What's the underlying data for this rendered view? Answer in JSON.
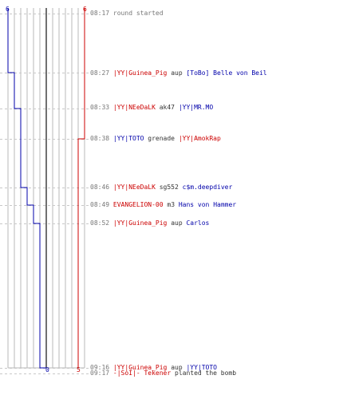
{
  "colors": {
    "team_a": "#0000aa",
    "team_b": "#cc0000",
    "grid": "#b8b8b8",
    "center": "#707070",
    "time": "#777777"
  },
  "scale": {
    "top_left": "6",
    "top_right": "6",
    "bottom_left": "0",
    "bottom_right": "5"
  },
  "events": [
    {
      "time": "08:17",
      "actor": "",
      "actor_team": "",
      "weapon": "round started",
      "target": "",
      "target_team": ""
    },
    {
      "time": "08:27",
      "actor": "|YY|Guinea_Pig",
      "actor_team": "red",
      "weapon": "aup",
      "target": "[ToBo] Belle von Beil",
      "target_team": "blue"
    },
    {
      "time": "08:33",
      "actor": "|YY|NEeDaLK",
      "actor_team": "red",
      "weapon": "ak47",
      "target": "|YY|MR.MO",
      "target_team": "blue"
    },
    {
      "time": "08:38",
      "actor": "|YY|TOTO",
      "actor_team": "blue",
      "weapon": "grenade",
      "target": "|YY|AmokRap",
      "target_team": "red"
    },
    {
      "time": "08:46",
      "actor": "|YY|NEeDaLK",
      "actor_team": "red",
      "weapon": "sg552",
      "target": "c$m.deepdiver",
      "target_team": "blue"
    },
    {
      "time": "08:49",
      "actor": "EVANGELION-00",
      "actor_team": "red",
      "weapon": "m3",
      "target": "Hans von Hammer",
      "target_team": "blue"
    },
    {
      "time": "08:52",
      "actor": "|YY|Guinea_Pig",
      "actor_team": "red",
      "weapon": "aup",
      "target": "Carlos",
      "target_team": "blue"
    },
    {
      "time": "09:16",
      "actor": "|YY|Guinea_Pig",
      "actor_team": "red",
      "weapon": "aup",
      "target": "|YY|TOTO",
      "target_team": "blue"
    },
    {
      "time": "09:17",
      "actor": "-|SoI|- Tekener",
      "actor_team": "red",
      "weapon": "planted the bomb",
      "target": "",
      "target_team": ""
    }
  ],
  "team_a_alive": [
    6,
    5,
    4,
    4,
    3,
    2,
    1,
    0,
    0
  ],
  "team_b_alive": [
    6,
    6,
    6,
    5,
    5,
    5,
    5,
    5,
    5
  ]
}
